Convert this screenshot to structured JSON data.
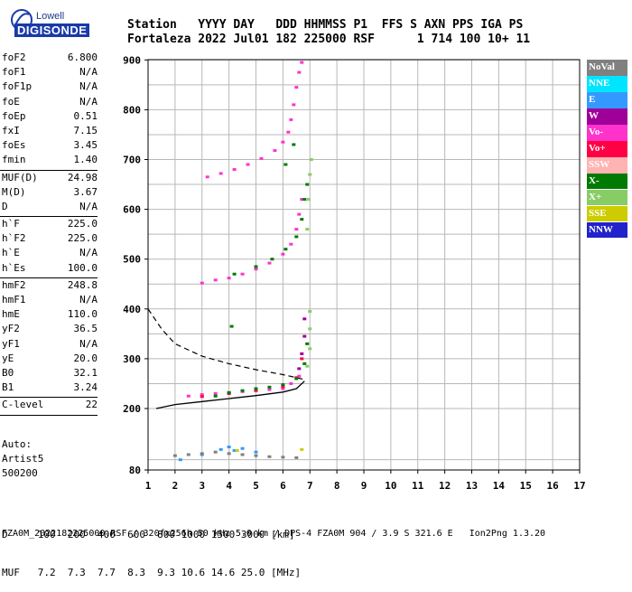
{
  "logo": {
    "line1": "Lowell",
    "line2": "DIGISONDE"
  },
  "header": {
    "row1": "Station   YYYY DAY   DDD HHMMSS P1  FFS S AXN PPS IGA PS",
    "row2": "Fortaleza 2022 Jul01 182 225000 RSF      1 714 100 10+ 11"
  },
  "params": [
    {
      "label": "foF2",
      "value": "6.800"
    },
    {
      "label": "foF1",
      "value": "N/A"
    },
    {
      "label": "foF1p",
      "value": "N/A"
    },
    {
      "label": "foE",
      "value": "N/A"
    },
    {
      "label": "foEp",
      "value": "0.51"
    },
    {
      "label": "fxI",
      "value": "7.15"
    },
    {
      "label": "foEs",
      "value": "3.45"
    },
    {
      "label": "fmin",
      "value": "1.40"
    },
    {
      "sep": true
    },
    {
      "label": "MUF(D)",
      "value": "24.98"
    },
    {
      "label": "M(D)",
      "value": "3.67"
    },
    {
      "label": "D",
      "value": "N/A"
    },
    {
      "sep": true
    },
    {
      "label": "h`F",
      "value": "225.0"
    },
    {
      "label": "h`F2",
      "value": "225.0"
    },
    {
      "label": "h`E",
      "value": "N/A"
    },
    {
      "label": "h`Es",
      "value": "100.0"
    },
    {
      "sep": true
    },
    {
      "label": "hmF2",
      "value": "248.8"
    },
    {
      "label": "hmF1",
      "value": "N/A"
    },
    {
      "label": "hmE",
      "value": "110.0"
    },
    {
      "label": "yF2",
      "value": "36.5"
    },
    {
      "label": "yF1",
      "value": "N/A"
    },
    {
      "label": "yE",
      "value": "20.0"
    },
    {
      "label": "B0",
      "value": "32.1"
    },
    {
      "label": "B1",
      "value": "3.24"
    },
    {
      "sep": true
    },
    {
      "label": "C-level",
      "value": "22"
    },
    {
      "sep": true
    }
  ],
  "auto": {
    "line1": "Auto:",
    "line2": "Artist5",
    "line3": "500200"
  },
  "legend": [
    {
      "label": "NoVal",
      "color": "#808080"
    },
    {
      "label": "NNE",
      "color": "#00e5ff"
    },
    {
      "label": "E",
      "color": "#3399ff"
    },
    {
      "label": "W",
      "color": "#a0009a"
    },
    {
      "label": "Vo-",
      "color": "#ff33cc"
    },
    {
      "label": "Vo+",
      "color": "#ff0044"
    },
    {
      "label": "SSW",
      "color": "#ffb3b3"
    },
    {
      "label": "X-",
      "color": "#007a00"
    },
    {
      "label": "X+",
      "color": "#88cc66"
    },
    {
      "label": "SSE",
      "color": "#cccc00"
    },
    {
      "label": "NNW",
      "color": "#2222cc"
    }
  ],
  "footer": {
    "row1": "D     100  200  400  600  800 1000 1500 3000 [km]",
    "row2": "MUF   7.2  7.3  7.7  8.3  9.3 10.6 14.6 25.0 [MHz]",
    "file": "FZA0M_2022182225000.RSF / 320fx256h 50 kHz 5.0 km / DPS-4 FZA0M 904 / 3.9 S 321.6 E   Ion2Png 1.3.20"
  },
  "chart_data": {
    "type": "scatter",
    "xlim": [
      1,
      17
    ],
    "ylim": [
      80,
      900
    ],
    "x_ticks": [
      "1",
      "2",
      "3",
      "4",
      "5",
      "6",
      "7",
      "8",
      "9",
      "10",
      "11",
      "12",
      "13",
      "14",
      "15",
      "16",
      "17"
    ],
    "y_ticks": [
      "900",
      "800",
      "700",
      "600",
      "500",
      "400",
      "300",
      "200",
      "80"
    ],
    "grid": true,
    "series": [
      {
        "name": "Vo-",
        "color": "#ff33cc",
        "points": [
          [
            2.5,
            225
          ],
          [
            3,
            228
          ],
          [
            3.5,
            230
          ],
          [
            4,
            232
          ],
          [
            4.5,
            234
          ],
          [
            5,
            236
          ],
          [
            5.5,
            238
          ],
          [
            6,
            240
          ],
          [
            6.3,
            250
          ],
          [
            6.6,
            265
          ],
          [
            3,
            452
          ],
          [
            3.5,
            458
          ],
          [
            4,
            462
          ],
          [
            4.5,
            470
          ],
          [
            5,
            480
          ],
          [
            5.5,
            492
          ],
          [
            6,
            510
          ],
          [
            6.3,
            530
          ],
          [
            6.5,
            560
          ],
          [
            6.6,
            590
          ],
          [
            6.7,
            620
          ],
          [
            3.2,
            665
          ],
          [
            3.7,
            672
          ],
          [
            4.2,
            680
          ],
          [
            4.7,
            690
          ],
          [
            5.2,
            702
          ],
          [
            5.7,
            718
          ],
          [
            6,
            735
          ],
          [
            6.2,
            755
          ],
          [
            6.3,
            780
          ],
          [
            6.4,
            810
          ],
          [
            6.5,
            845
          ],
          [
            6.6,
            875
          ],
          [
            6.7,
            895
          ]
        ]
      },
      {
        "name": "Vo+",
        "color": "#ff0044",
        "points": [
          [
            3,
            224
          ],
          [
            4,
            230
          ],
          [
            5,
            236
          ],
          [
            6,
            244
          ],
          [
            6.5,
            262
          ],
          [
            6.7,
            300
          ]
        ]
      },
      {
        "name": "W",
        "color": "#a0009a",
        "points": [
          [
            6.6,
            280
          ],
          [
            6.7,
            310
          ],
          [
            6.8,
            345
          ],
          [
            6.8,
            380
          ]
        ]
      },
      {
        "name": "X-",
        "color": "#007a00",
        "points": [
          [
            3.5,
            225
          ],
          [
            4,
            232
          ],
          [
            4.5,
            236
          ],
          [
            5,
            240
          ],
          [
            5.5,
            243
          ],
          [
            6,
            248
          ],
          [
            6.5,
            260
          ],
          [
            6.8,
            290
          ],
          [
            6.9,
            330
          ],
          [
            4.2,
            470
          ],
          [
            5,
            485
          ],
          [
            5.6,
            500
          ],
          [
            6.1,
            520
          ],
          [
            6.5,
            545
          ],
          [
            6.7,
            580
          ],
          [
            6.8,
            620
          ],
          [
            6.9,
            650
          ],
          [
            6.1,
            690
          ],
          [
            6.4,
            730
          ],
          [
            4.1,
            365
          ]
        ]
      },
      {
        "name": "X+",
        "color": "#88cc66",
        "points": [
          [
            6.9,
            285
          ],
          [
            7,
            320
          ],
          [
            7,
            360
          ],
          [
            7,
            395
          ],
          [
            6.9,
            560
          ],
          [
            6.95,
            620
          ],
          [
            7,
            670
          ],
          [
            7.05,
            700
          ]
        ]
      },
      {
        "name": "E",
        "color": "#3399ff",
        "points": [
          [
            3.7,
            120
          ],
          [
            4,
            125
          ],
          [
            4.2,
            118
          ],
          [
            4.5,
            122
          ],
          [
            5,
            115
          ],
          [
            3,
            110
          ],
          [
            2.2,
            100
          ]
        ]
      },
      {
        "name": "NoVal",
        "color": "#808080",
        "points": [
          [
            2,
            108
          ],
          [
            2.5,
            110
          ],
          [
            3,
            112
          ],
          [
            3.5,
            115
          ],
          [
            4,
            112
          ],
          [
            4.5,
            110
          ],
          [
            5,
            108
          ],
          [
            5.5,
            106
          ],
          [
            6,
            105
          ],
          [
            6.5,
            104
          ]
        ]
      },
      {
        "name": "SSE",
        "color": "#cccc00",
        "points": [
          [
            6.7,
            120
          ],
          [
            4.3,
            118
          ]
        ]
      }
    ],
    "profile_solid": [
      [
        1.3,
        200
      ],
      [
        2,
        208
      ],
      [
        3,
        214
      ],
      [
        4,
        220
      ],
      [
        5,
        226
      ],
      [
        6,
        233
      ],
      [
        6.5,
        240
      ],
      [
        6.8,
        255
      ]
    ],
    "profile_dashed": [
      [
        1,
        400
      ],
      [
        1.5,
        360
      ],
      [
        2,
        330
      ],
      [
        3,
        305
      ],
      [
        4,
        290
      ],
      [
        5,
        278
      ],
      [
        6,
        268
      ],
      [
        6.5,
        262
      ],
      [
        6.8,
        258
      ]
    ]
  }
}
